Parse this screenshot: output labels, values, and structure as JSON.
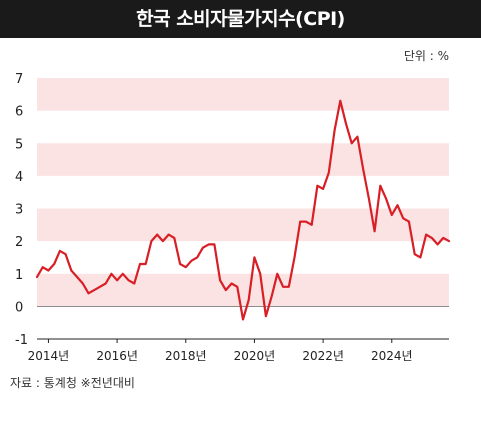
{
  "header": {
    "title": "한국 소비자물가지수(CPI)"
  },
  "unit_label": "단위 : %",
  "source_label": "자료 : 통계청 ※전년대비",
  "colors": {
    "band": "#fbe3e3",
    "line": "#d81f26",
    "zero_line": "#666666",
    "title_bg": "#1a1a1a"
  },
  "chart_data": {
    "type": "line",
    "title": "한국 소비자물가지수(CPI)",
    "unit": "단위 : %",
    "ylim": [
      -1,
      7
    ],
    "y_ticks": [
      "7",
      "6",
      "5",
      "4",
      "3",
      "2",
      "1",
      "0",
      "-1"
    ],
    "xlim": [
      "2013-09",
      "2025-09"
    ],
    "x_ticks": [
      {
        "x": "2014-01",
        "label": "2014년"
      },
      {
        "x": "2016-01",
        "label": "2016년"
      },
      {
        "x": "2018-01",
        "label": "2018년"
      },
      {
        "x": "2020-01",
        "label": "2020년"
      },
      {
        "x": "2022-01",
        "label": "2022년"
      },
      {
        "x": "2024-01",
        "label": "2024년"
      }
    ],
    "grid": "alternating horizontal bands",
    "series": [
      {
        "x": [
          "2013-09",
          "2013-11",
          "2014-01",
          "2014-03",
          "2014-05",
          "2014-07",
          "2014-09",
          "2014-11",
          "2015-01",
          "2015-03",
          "2015-05",
          "2015-07",
          "2015-09",
          "2015-11",
          "2016-01",
          "2016-03",
          "2016-05",
          "2016-07",
          "2016-09",
          "2016-11",
          "2017-01",
          "2017-03",
          "2017-05",
          "2017-07",
          "2017-09",
          "2017-11",
          "2018-01",
          "2018-03",
          "2018-05",
          "2018-07",
          "2018-09",
          "2018-11",
          "2019-01",
          "2019-03",
          "2019-05",
          "2019-07",
          "2019-09",
          "2019-11",
          "2020-01",
          "2020-03",
          "2020-05",
          "2020-07",
          "2020-09",
          "2020-11",
          "2021-01",
          "2021-03",
          "2021-05",
          "2021-07",
          "2021-09",
          "2021-11",
          "2022-01",
          "2022-03",
          "2022-05",
          "2022-07",
          "2022-09",
          "2022-11",
          "2023-01",
          "2023-03",
          "2023-05",
          "2023-07",
          "2023-09",
          "2023-11",
          "2024-01",
          "2024-03",
          "2024-05",
          "2024-07",
          "2024-09",
          "2024-11",
          "2025-01",
          "2025-03",
          "2025-05",
          "2025-07",
          "2025-09"
        ],
        "values": [
          0.9,
          1.2,
          1.1,
          1.3,
          1.7,
          1.6,
          1.1,
          0.9,
          0.7,
          0.4,
          0.5,
          0.6,
          0.7,
          1.0,
          0.8,
          1.0,
          0.8,
          0.7,
          1.3,
          1.3,
          2.0,
          2.2,
          2.0,
          2.2,
          2.1,
          1.3,
          1.2,
          1.4,
          1.5,
          1.8,
          1.9,
          1.9,
          0.8,
          0.5,
          0.7,
          0.6,
          -0.4,
          0.2,
          1.5,
          1.0,
          -0.3,
          0.3,
          1.0,
          0.6,
          0.6,
          1.5,
          2.6,
          2.6,
          2.5,
          3.7,
          3.6,
          4.1,
          5.4,
          6.3,
          5.6,
          5.0,
          5.2,
          4.2,
          3.3,
          2.3,
          3.7,
          3.3,
          2.8,
          3.1,
          2.7,
          2.6,
          1.6,
          1.5,
          2.2,
          2.1,
          1.9,
          2.1,
          2.0
        ]
      }
    ]
  }
}
